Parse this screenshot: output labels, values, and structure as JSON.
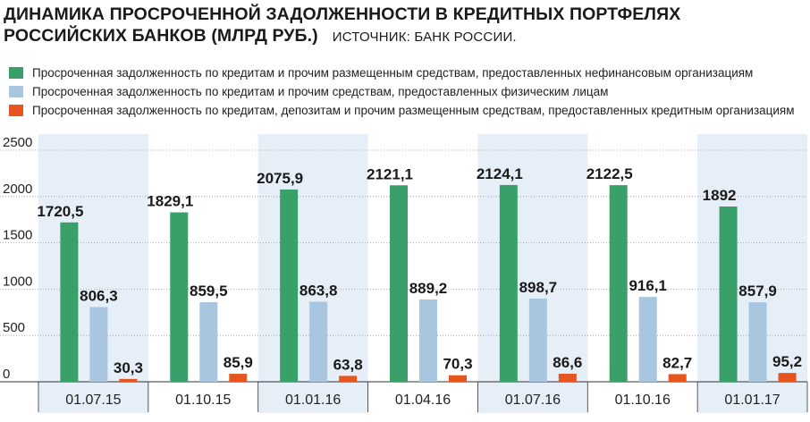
{
  "title_line1": "ДИНАМИКА ПРОСРОЧЕННОЙ ЗАДОЛЖЕННОСТИ В КРЕДИТНЫХ ПОРТФЕЛЯХ",
  "title_line2": "РОССИЙСКИХ БАНКОВ (МЛРД РУБ.)",
  "source": "ИСТОЧНИК: БАНК РОССИИ.",
  "colors": {
    "green": "#3aa06a",
    "lightblue": "#a9c6e0",
    "orange": "#e8541e",
    "band": "#e6eef8"
  },
  "chart_data": {
    "type": "bar",
    "categories": [
      "01.07.15",
      "01.10.15",
      "01.01.16",
      "01.04.16",
      "01.07.16",
      "01.10.16",
      "01.01.17"
    ],
    "series": [
      {
        "name": "Просроченная задолженность по кредитам и прочим размещенным средствам, предоставленных нефинансовым организациям",
        "values": [
          1720.5,
          1829.1,
          2075.9,
          2121.1,
          2124.1,
          2122.5,
          1892
        ],
        "labels": [
          "1720,5",
          "1829,1",
          "2075,9",
          "2121,1",
          "2124,1",
          "2122,5",
          "1892"
        ]
      },
      {
        "name": "Просроченная задолженность по кредитам и прочим средствам, предоставленных физическим лицам",
        "values": [
          806.3,
          859.5,
          863.8,
          889.2,
          898.7,
          916.1,
          857.9
        ],
        "labels": [
          "806,3",
          "859,5",
          "863,8",
          "889,2",
          "898,7",
          "916,1",
          "857,9"
        ]
      },
      {
        "name": "Просроченная задолженность по кредитам, депозитам и прочим размещенным средствам, предоставленных кредитным организациям",
        "values": [
          30.3,
          85.9,
          63.8,
          70.3,
          86.6,
          82.7,
          95.2
        ],
        "labels": [
          "30,3",
          "85,9",
          "63,8",
          "70,3",
          "86,6",
          "82,7",
          "95,2"
        ]
      }
    ],
    "ylim": [
      0,
      2500
    ],
    "yticks": [
      "0",
      "500",
      "1000",
      "1500",
      "2000",
      "2500"
    ],
    "xlabel": "",
    "ylabel": "",
    "grid": true,
    "legend": "top-left"
  }
}
